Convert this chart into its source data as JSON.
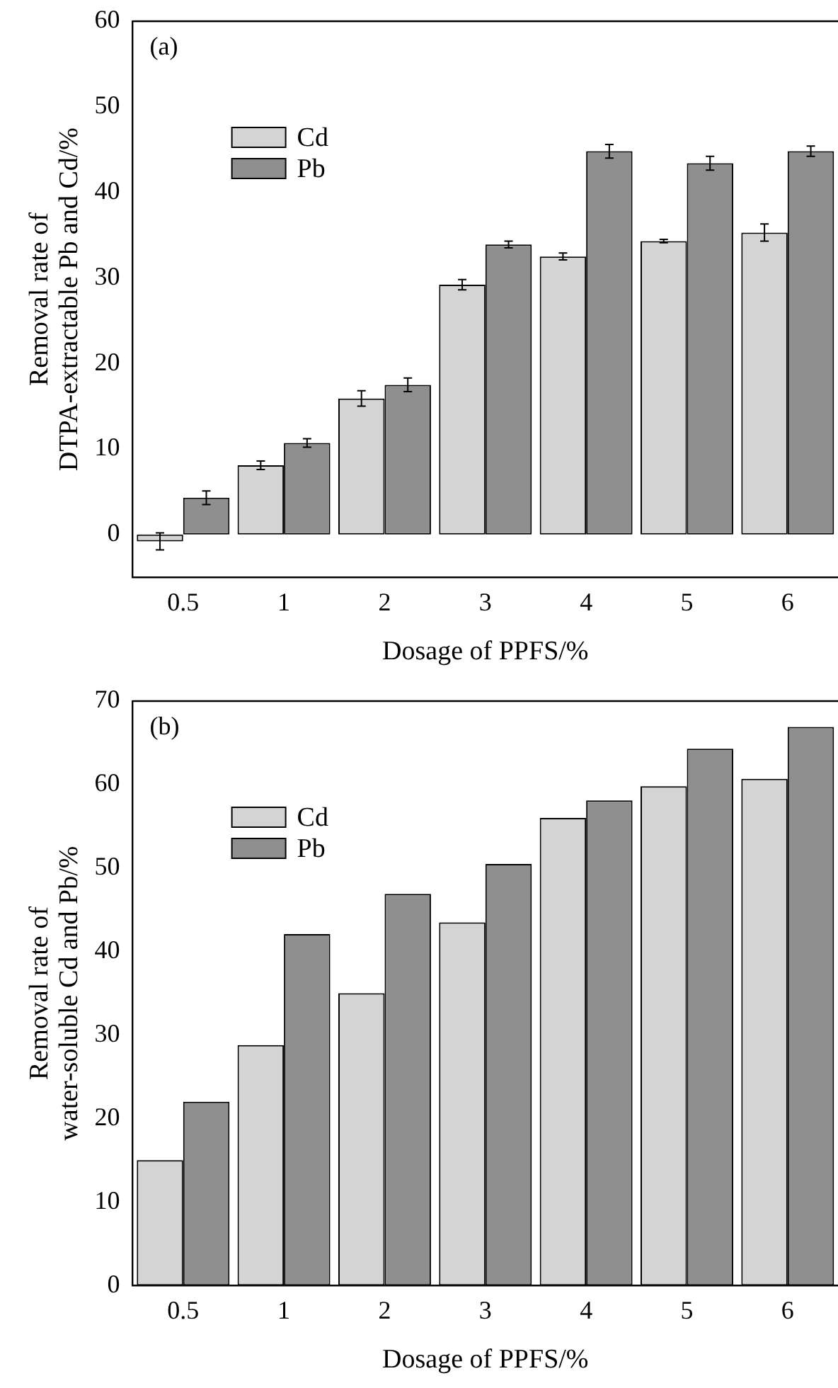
{
  "chart_data": [
    {
      "type": "bar",
      "title": "(a)",
      "xlabel": "Dosage of PPFS/%",
      "ylabel": "Removal rate of\nDTPA-extractable Pb and Cd/%",
      "categories": [
        "0.5",
        "1",
        "2",
        "3",
        "4",
        "5",
        "6"
      ],
      "series": [
        {
          "name": "Cd",
          "color": "#d4d4d4",
          "values": [
            -0.8,
            8.1,
            15.9,
            29.2,
            32.5,
            34.3,
            35.3
          ],
          "errors": [
            1.0,
            0.5,
            0.9,
            0.6,
            0.4,
            0.2,
            1.0
          ]
        },
        {
          "name": "Pb",
          "color": "#8f8f8f",
          "values": [
            4.3,
            10.7,
            17.5,
            33.9,
            44.8,
            43.4,
            44.8
          ],
          "errors": [
            0.8,
            0.5,
            0.8,
            0.4,
            0.8,
            0.8,
            0.6
          ]
        }
      ],
      "ylim": [
        -5,
        60
      ],
      "yticks": [
        0,
        10,
        20,
        30,
        40,
        50,
        60
      ],
      "grid": false,
      "legend": "top left"
    },
    {
      "type": "bar",
      "title": "(b)",
      "xlabel": "Dosage of PPFS/%",
      "ylabel": "Removal rate of\nwater-soluble Cd and Pb/%",
      "categories": [
        "0.5",
        "1",
        "2",
        "3",
        "4",
        "5",
        "6"
      ],
      "series": [
        {
          "name": "Cd",
          "color": "#d4d4d4",
          "values": [
            15,
            28.8,
            35,
            43.5,
            56,
            59.8,
            60.7
          ]
        },
        {
          "name": "Pb",
          "color": "#8f8f8f",
          "values": [
            22,
            42.1,
            46.9,
            50.5,
            58.1,
            64.3,
            66.9
          ]
        }
      ],
      "ylim": [
        0,
        70
      ],
      "yticks": [
        0,
        10,
        20,
        30,
        40,
        50,
        60,
        70
      ],
      "grid": false,
      "legend": "top left"
    }
  ]
}
